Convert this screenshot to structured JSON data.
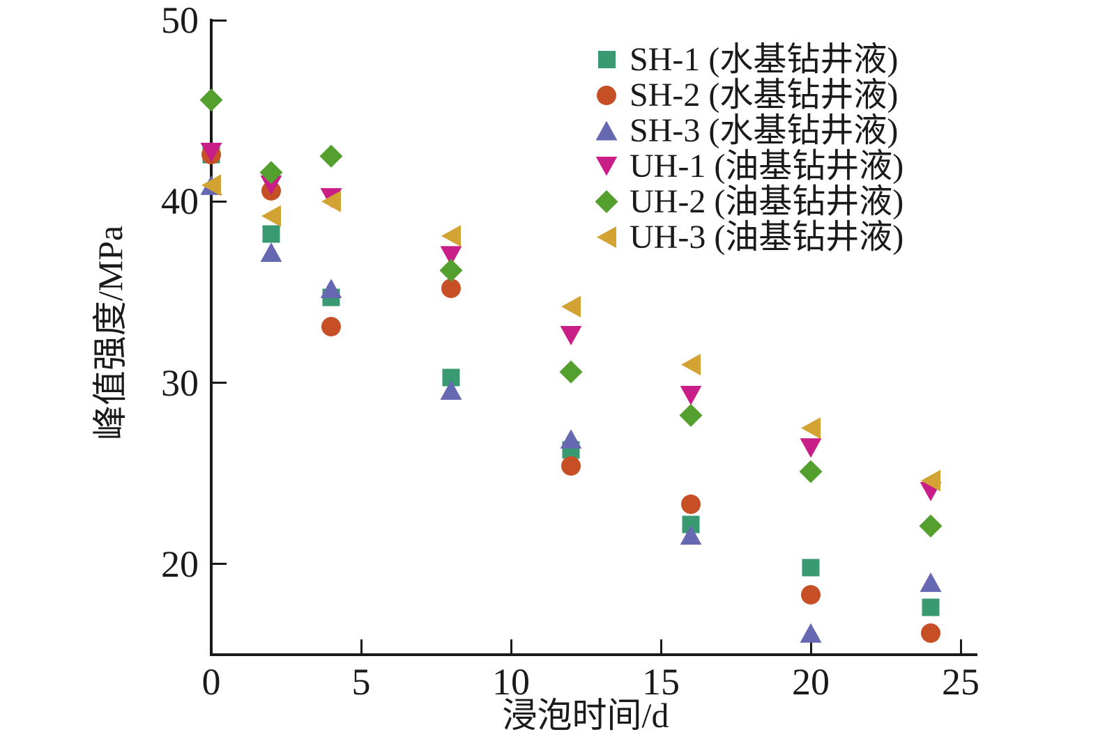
{
  "chart_data": {
    "type": "scatter",
    "title": "",
    "xlabel": "浸泡时间/d",
    "ylabel": "峰值强度/MPa",
    "xlim": [
      0,
      25
    ],
    "ylim": [
      15,
      50
    ],
    "x_ticks": [
      0,
      5,
      10,
      15,
      20,
      25
    ],
    "y_ticks": [
      20,
      30,
      40,
      50
    ],
    "grid": false,
    "legend_position": "upper right",
    "x": [
      0,
      2,
      4,
      8,
      12,
      16,
      20,
      24
    ],
    "series": [
      {
        "name": "SH-1 (水基钻井液)",
        "marker": "square",
        "color": "#399a72",
        "values": [
          42.6,
          38.2,
          34.7,
          30.3,
          26.3,
          22.2,
          19.8,
          17.6
        ]
      },
      {
        "name": "SH-2 (水基钻井液)",
        "marker": "circle",
        "color": "#c64f26",
        "values": [
          42.6,
          40.6,
          33.1,
          35.2,
          25.4,
          23.3,
          18.3,
          16.2
        ]
      },
      {
        "name": "SH-3 (水基钻井液)",
        "marker": "triangle-up",
        "color": "#6668b2",
        "values": [
          40.9,
          37.2,
          35.2,
          29.6,
          26.9,
          21.6,
          16.2,
          19.0
        ]
      },
      {
        "name": "UH-1 (油基钻井液)",
        "marker": "triangle-down",
        "color": "#c91d87",
        "values": [
          42.7,
          40.9,
          40.2,
          37.0,
          32.6,
          29.3,
          26.4,
          24.0
        ]
      },
      {
        "name": "UH-2 (油基钻井液)",
        "marker": "diamond",
        "color": "#53a02f",
        "values": [
          45.6,
          41.6,
          42.5,
          36.2,
          30.6,
          28.2,
          25.1,
          22.1
        ]
      },
      {
        "name": "UH-3 (油基钻井液)",
        "marker": "triangle-left",
        "color": "#d2a233",
        "values": [
          40.9,
          39.2,
          40.0,
          38.1,
          34.2,
          31.0,
          27.5,
          24.6
        ]
      }
    ],
    "axis_color": "#1a1a1a",
    "background_color": "#ffffff"
  }
}
